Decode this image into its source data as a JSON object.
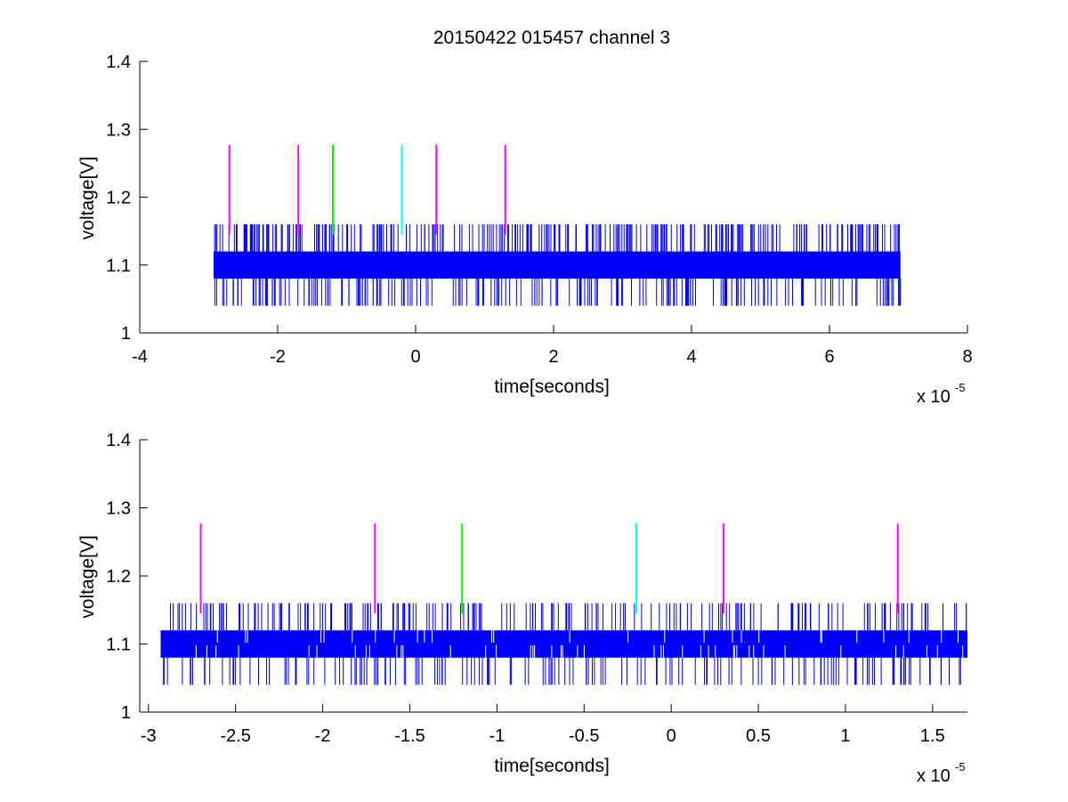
{
  "figure": {
    "title": "20150422 015457 channel 3",
    "colors": {
      "signal": "#0000ff",
      "marker_magenta": "#ff00ff",
      "marker_green": "#00ff00",
      "marker_cyan": "#00ffff",
      "axes": "#000000"
    }
  },
  "chart_data": [
    {
      "type": "line",
      "title": "20150422 015457 channel 3",
      "xlabel": "time[seconds]",
      "ylabel": "voltage[V]",
      "xlim": [
        -4e-05,
        8e-05
      ],
      "ylim": [
        1,
        1.4
      ],
      "x_ticks": [
        -4,
        -2,
        0,
        2,
        4,
        6,
        8
      ],
      "x_tick_labels": [
        "-4",
        "-2",
        "0",
        "2",
        "4",
        "6",
        "8"
      ],
      "y_ticks": [
        1,
        1.1,
        1.2,
        1.3,
        1.4
      ],
      "y_tick_labels": [
        "1",
        "1.1",
        "1.2",
        "1.3",
        "1.4"
      ],
      "x_exponent_base": "x 10",
      "x_exponent_power": "-5",
      "grid": false,
      "legend": "none",
      "signal": {
        "x_range": [
          -2.93e-05,
          7.03e-05
        ],
        "band": [
          1.08,
          1.12
        ],
        "spike_high": 1.16,
        "spike_low": 1.04,
        "color": "#0000ff"
      },
      "markers": [
        {
          "x": -2.7e-05,
          "y_range": [
            1.145,
            1.277
          ],
          "color": "#ff00ff"
        },
        {
          "x": -1.7e-05,
          "y_range": [
            1.145,
            1.277
          ],
          "color": "#ff00ff"
        },
        {
          "x": -1.2e-05,
          "y_range": [
            1.145,
            1.277
          ],
          "color": "#00ff00"
        },
        {
          "x": -2e-06,
          "y_range": [
            1.145,
            1.277
          ],
          "color": "#00ffff"
        },
        {
          "x": 3e-06,
          "y_range": [
            1.145,
            1.277
          ],
          "color": "#ff00ff"
        },
        {
          "x": 1.3e-05,
          "y_range": [
            1.145,
            1.277
          ],
          "color": "#ff00ff"
        }
      ]
    },
    {
      "type": "line",
      "title": "",
      "xlabel": "time[seconds]",
      "ylabel": "voltage[V]",
      "xlim": [
        -3.05e-05,
        1.7e-05
      ],
      "ylim": [
        1,
        1.4
      ],
      "x_ticks": [
        -3,
        -2.5,
        -2,
        -1.5,
        -1,
        -0.5,
        0,
        0.5,
        1,
        1.5
      ],
      "x_tick_labels": [
        "-3",
        "-2.5",
        "-2",
        "-1.5",
        "-1",
        "-0.5",
        "0",
        "0.5",
        "1",
        "1.5"
      ],
      "y_ticks": [
        1,
        1.1,
        1.2,
        1.3,
        1.4
      ],
      "y_tick_labels": [
        "1",
        "1.1",
        "1.2",
        "1.3",
        "1.4"
      ],
      "x_exponent_base": "x 10",
      "x_exponent_power": "-5",
      "grid": false,
      "legend": "none",
      "signal": {
        "x_range": [
          -2.93e-05,
          1.7e-05
        ],
        "band": [
          1.08,
          1.12
        ],
        "spike_high": 1.16,
        "spike_low": 1.04,
        "color": "#0000ff"
      },
      "markers": [
        {
          "x": -2.7e-05,
          "y_range": [
            1.145,
            1.277
          ],
          "color": "#ff00ff"
        },
        {
          "x": -1.7e-05,
          "y_range": [
            1.145,
            1.277
          ],
          "color": "#ff00ff"
        },
        {
          "x": -1.2e-05,
          "y_range": [
            1.145,
            1.277
          ],
          "color": "#00ff00"
        },
        {
          "x": -2e-06,
          "y_range": [
            1.145,
            1.277
          ],
          "color": "#00ffff"
        },
        {
          "x": 3e-06,
          "y_range": [
            1.145,
            1.277
          ],
          "color": "#ff00ff"
        },
        {
          "x": 1.3e-05,
          "y_range": [
            1.145,
            1.277
          ],
          "color": "#ff00ff"
        }
      ]
    }
  ]
}
